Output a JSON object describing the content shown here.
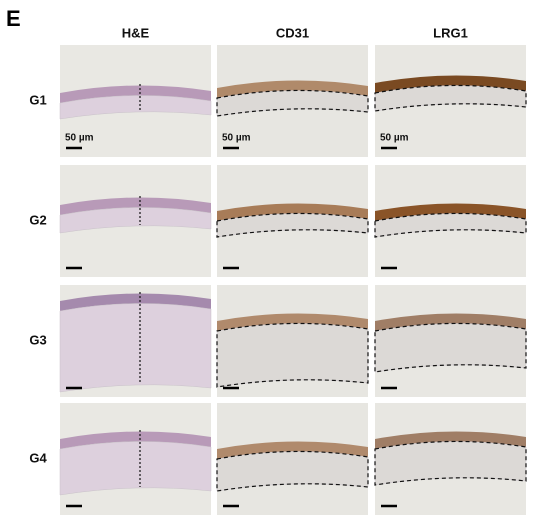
{
  "panel_label": "E",
  "columns": [
    "H&E",
    "CD31",
    "LRG1"
  ],
  "rows": [
    "G1",
    "G2",
    "G3",
    "G4"
  ],
  "scale_bar_labels": [
    "50 µm",
    "50 µm",
    "50 µm"
  ]
}
